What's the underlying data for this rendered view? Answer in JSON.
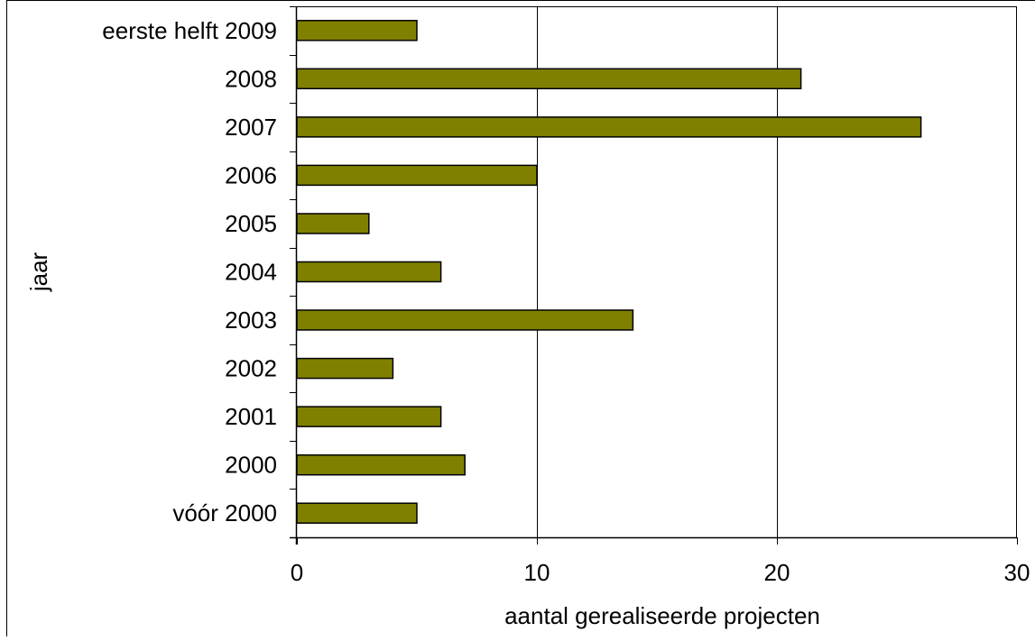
{
  "chart_data": {
    "type": "bar",
    "orientation": "horizontal",
    "categories": [
      "eerste helft 2009",
      "2008",
      "2007",
      "2006",
      "2005",
      "2004",
      "2003",
      "2002",
      "2001",
      "2000",
      "vóór 2000"
    ],
    "values": [
      5,
      21,
      26,
      10,
      3,
      6,
      14,
      4,
      6,
      7,
      5
    ],
    "xlabel": "aantal gerealiseerde projecten",
    "ylabel": "jaar",
    "xlim": [
      0,
      30
    ],
    "xticks": [
      "0",
      "10",
      "20",
      "30"
    ],
    "grid": "vertical",
    "legend": "none",
    "colors": {
      "bar": "#808000",
      "bar_edge": "#000000",
      "grid": "#000000",
      "axis": "#000000"
    }
  }
}
